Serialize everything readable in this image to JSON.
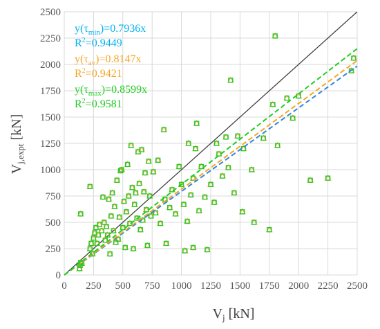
{
  "chart_data": {
    "type": "scatter",
    "xlabel": "V",
    "xlabel_sub": "j",
    "xlabel_unit": "[kN]",
    "ylabel": "V",
    "ylabel_sub": "j,expt",
    "ylabel_unit": "[kN]",
    "xlim": [
      0,
      2500
    ],
    "ylim": [
      0,
      2500
    ],
    "x_ticks": [
      "0",
      "250",
      "500",
      "750",
      "1000",
      "1250",
      "1500",
      "1750",
      "2000",
      "2250",
      "2500"
    ],
    "y_ticks": [
      "0",
      "250",
      "500",
      "750",
      "1000",
      "1250",
      "1500",
      "1750",
      "2000",
      "2250",
      "2500"
    ],
    "grid": true,
    "reference_line": {
      "slope": 1,
      "color": "#404040"
    },
    "annotations": [
      {
        "id": "min",
        "pre": "y(τ",
        "sub": "min",
        "post": ")=0.7936x",
        "r2_pre": "R",
        "r2_sup": "2",
        "r2_post": "=0.9449",
        "color": "#00b0f0"
      },
      {
        "id": "av",
        "pre": "y(τ",
        "sub": "av",
        "post": ")=0.8147x",
        "r2_pre": "R",
        "r2_sup": "2",
        "r2_post": "=0.9421",
        "color": "#f5a623"
      },
      {
        "id": "max",
        "pre": "y(τ",
        "sub": "max",
        "post": ")=0.8599x",
        "r2_pre": "R",
        "r2_sup": "2",
        "r2_post": "=0.9581",
        "color": "#22cc22"
      }
    ],
    "series": [
      {
        "marker": "circle",
        "color": "#6fb7f5",
        "trend_color": "#2e86e0",
        "slope": 0.7936
      },
      {
        "marker": "triangle",
        "color": "#f5a623",
        "trend_color": "#f5a623",
        "slope": 0.8147
      },
      {
        "marker": "square",
        "color": "#22cc22",
        "trend_color": "#22cc22",
        "slope": 0.8599
      }
    ],
    "points": [
      [
        130,
        60
      ],
      [
        135,
        90
      ],
      [
        140,
        120
      ],
      [
        140,
        580
      ],
      [
        150,
        110
      ],
      [
        220,
        840
      ],
      [
        220,
        250
      ],
      [
        230,
        300
      ],
      [
        240,
        200
      ],
      [
        250,
        350
      ],
      [
        260,
        400
      ],
      [
        270,
        450
      ],
      [
        280,
        300
      ],
      [
        290,
        380
      ],
      [
        300,
        480
      ],
      [
        320,
        420
      ],
      [
        330,
        740
      ],
      [
        340,
        500
      ],
      [
        350,
        330
      ],
      [
        360,
        460
      ],
      [
        370,
        380
      ],
      [
        380,
        720
      ],
      [
        390,
        200
      ],
      [
        400,
        560
      ],
      [
        410,
        780
      ],
      [
        420,
        420
      ],
      [
        430,
        650
      ],
      [
        440,
        310
      ],
      [
        450,
        900
      ],
      [
        460,
        340
      ],
      [
        470,
        550
      ],
      [
        480,
        990
      ],
      [
        490,
        1000
      ],
      [
        500,
        450
      ],
      [
        510,
        700
      ],
      [
        520,
        260
      ],
      [
        530,
        600
      ],
      [
        540,
        1050
      ],
      [
        550,
        750
      ],
      [
        560,
        490
      ],
      [
        570,
        1230
      ],
      [
        580,
        830
      ],
      [
        590,
        250
      ],
      [
        600,
        670
      ],
      [
        610,
        780
      ],
      [
        620,
        540
      ],
      [
        630,
        1170
      ],
      [
        640,
        870
      ],
      [
        650,
        430
      ],
      [
        660,
        1190
      ],
      [
        670,
        520
      ],
      [
        680,
        790
      ],
      [
        690,
        970
      ],
      [
        700,
        620
      ],
      [
        710,
        280
      ],
      [
        720,
        1080
      ],
      [
        730,
        750
      ],
      [
        740,
        560
      ],
      [
        760,
        980
      ],
      [
        780,
        590
      ],
      [
        800,
        1090
      ],
      [
        820,
        490
      ],
      [
        850,
        1380
      ],
      [
        860,
        720
      ],
      [
        870,
        300
      ],
      [
        900,
        640
      ],
      [
        920,
        810
      ],
      [
        950,
        580
      ],
      [
        980,
        1030
      ],
      [
        1000,
        860
      ],
      [
        1020,
        670
      ],
      [
        1030,
        230
      ],
      [
        1050,
        510
      ],
      [
        1060,
        1250
      ],
      [
        1080,
        760
      ],
      [
        1100,
        260
      ],
      [
        1100,
        920
      ],
      [
        1120,
        1200
      ],
      [
        1130,
        1440
      ],
      [
        1150,
        610
      ],
      [
        1170,
        1030
      ],
      [
        1200,
        740
      ],
      [
        1220,
        240
      ],
      [
        1250,
        860
      ],
      [
        1280,
        690
      ],
      [
        1300,
        1250
      ],
      [
        1320,
        1150
      ],
      [
        1350,
        940
      ],
      [
        1380,
        1310
      ],
      [
        1400,
        1020
      ],
      [
        1420,
        1850
      ],
      [
        1450,
        780
      ],
      [
        1480,
        1320
      ],
      [
        1520,
        600
      ],
      [
        1530,
        1200
      ],
      [
        1600,
        1000
      ],
      [
        1620,
        500
      ],
      [
        1700,
        1300
      ],
      [
        1750,
        430
      ],
      [
        1780,
        1620
      ],
      [
        1800,
        2270
      ],
      [
        1820,
        1230
      ],
      [
        1900,
        1680
      ],
      [
        1950,
        1490
      ],
      [
        2000,
        1700
      ],
      [
        2100,
        900
      ],
      [
        2250,
        920
      ],
      [
        2450,
        1940
      ],
      [
        2470,
        2060
      ]
    ]
  }
}
